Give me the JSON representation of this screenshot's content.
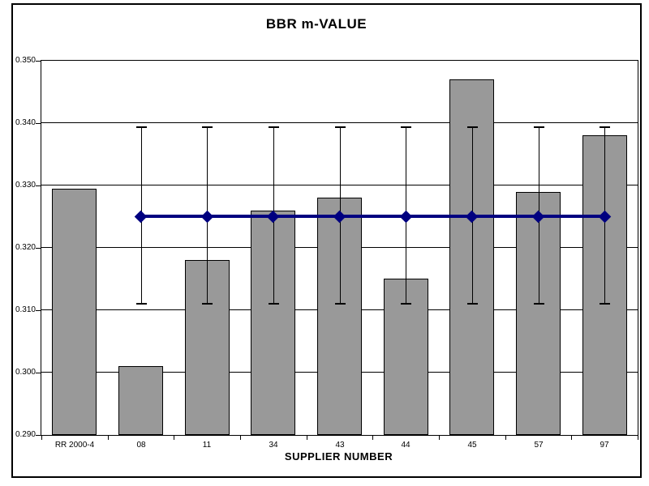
{
  "chart_data": {
    "type": "bar",
    "title": "BBR m-VALUE",
    "xlabel": "SUPPLIER NUMBER",
    "ylabel": "",
    "categories": [
      "RR 2000-4",
      "08",
      "11",
      "34",
      "43",
      "44",
      "45",
      "57",
      "97"
    ],
    "series": [
      {
        "name": "BBR m-value by supplier",
        "type": "bar",
        "color": "#999999",
        "border_color": "#000000",
        "values": [
          0.3295,
          0.301,
          0.318,
          0.326,
          0.328,
          0.315,
          0.347,
          0.329,
          0.338
        ]
      },
      {
        "name": "reference mean line",
        "type": "line",
        "color": "#000080",
        "marker": "diamond",
        "values": [
          null,
          0.325,
          0.325,
          0.325,
          0.325,
          0.325,
          0.325,
          0.325,
          0.325
        ],
        "error_low": 0.311,
        "error_high": 0.3395,
        "error_color": "#000000"
      }
    ],
    "ylim": [
      0.29,
      0.35
    ],
    "ytick_labels": [
      "0.290",
      "0.300",
      "0.310",
      "0.320",
      "0.330",
      "0.340",
      "0.350"
    ],
    "grid": "horizontal",
    "legend_position": "none",
    "plot_background": "#FFFFFF"
  }
}
